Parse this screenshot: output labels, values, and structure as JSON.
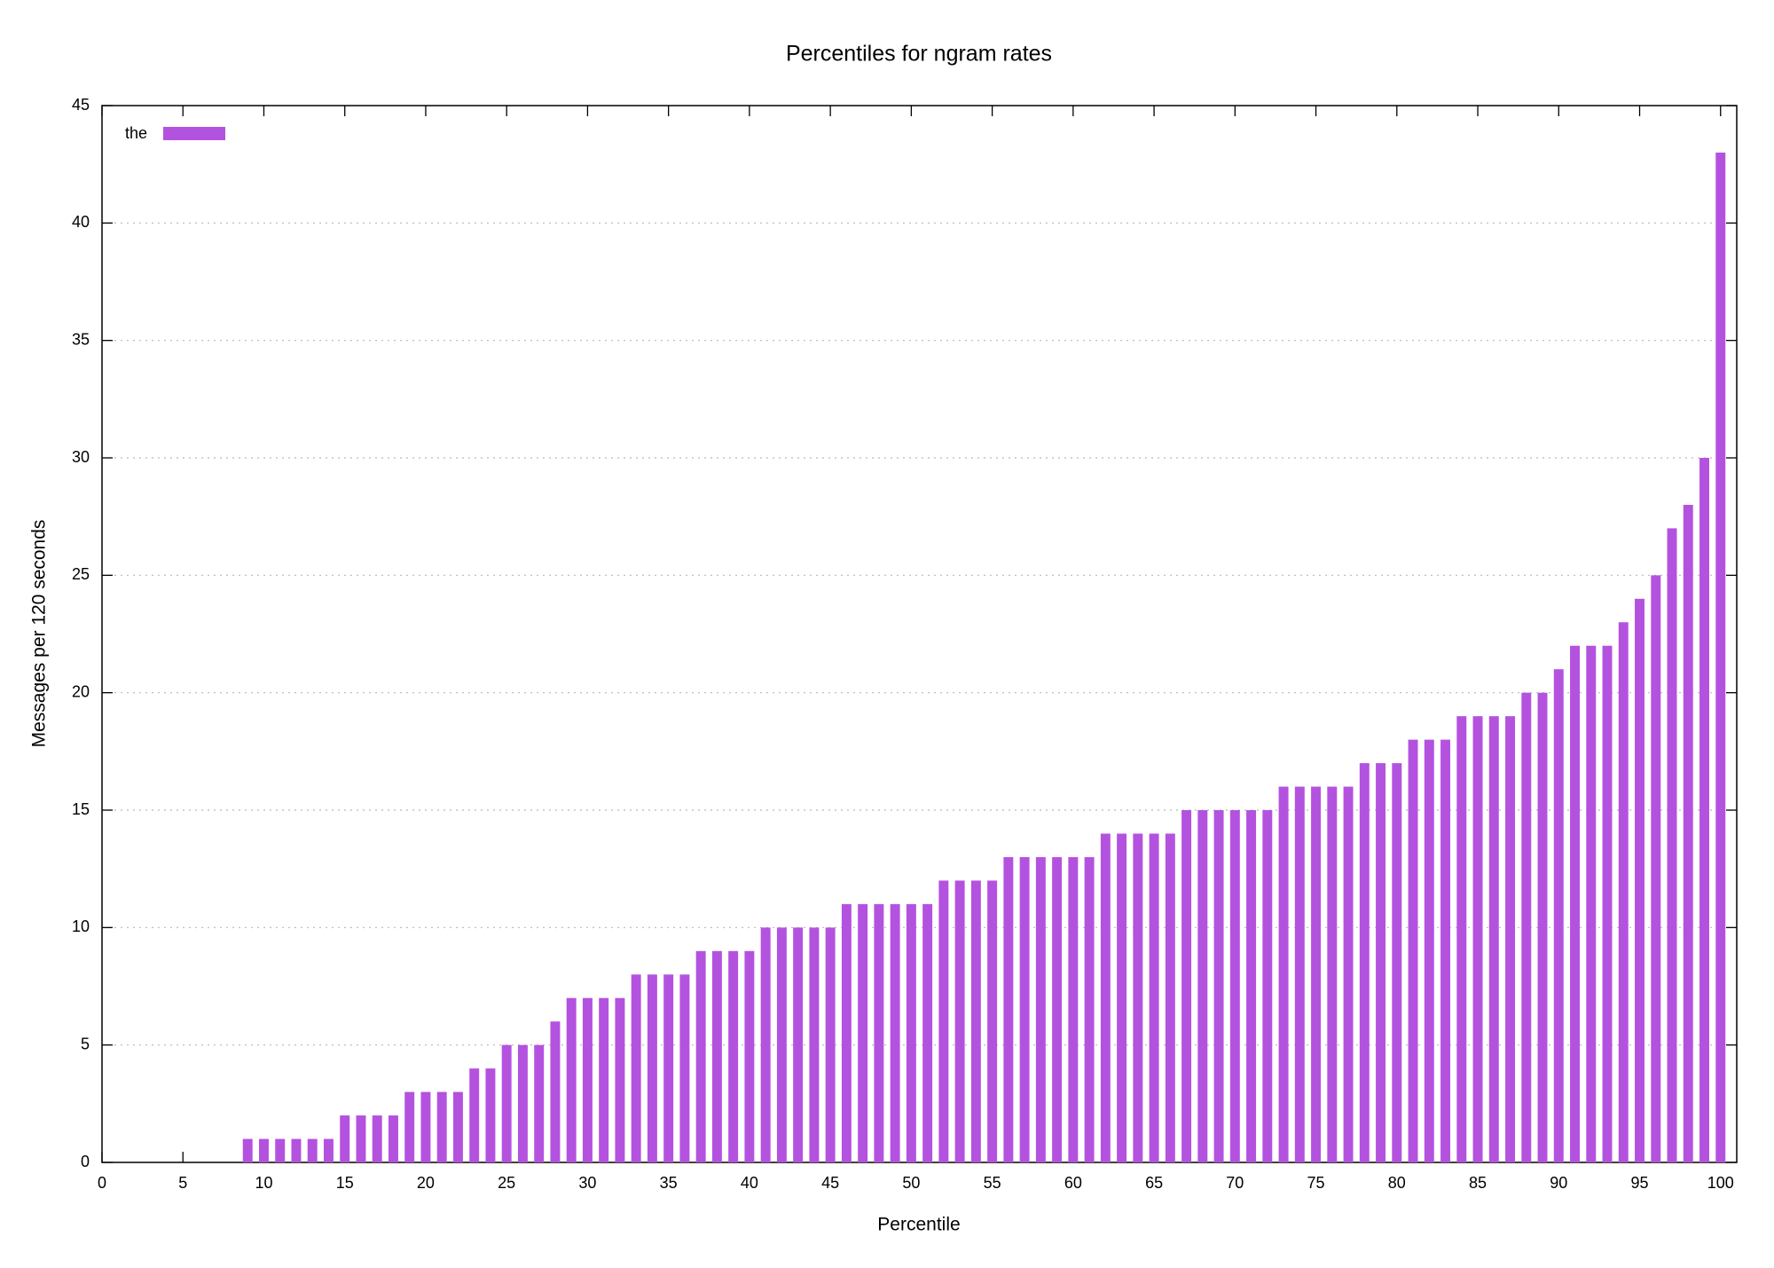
{
  "chart_data": {
    "type": "bar",
    "title": "Percentiles for ngram rates",
    "x_label": "Percentile",
    "y_label": "Messages per 120 seconds",
    "x": [
      9,
      10,
      11,
      12,
      13,
      14,
      15,
      16,
      17,
      18,
      19,
      20,
      21,
      22,
      23,
      24,
      25,
      26,
      27,
      28,
      29,
      30,
      31,
      32,
      33,
      34,
      35,
      36,
      37,
      38,
      39,
      40,
      41,
      42,
      43,
      44,
      45,
      46,
      47,
      48,
      49,
      50,
      51,
      52,
      53,
      54,
      55,
      56,
      57,
      58,
      59,
      60,
      61,
      62,
      63,
      64,
      65,
      66,
      67,
      68,
      69,
      70,
      71,
      72,
      73,
      74,
      75,
      76,
      77,
      78,
      79,
      80,
      81,
      82,
      83,
      84,
      85,
      86,
      87,
      88,
      89,
      90,
      91,
      92,
      93,
      94,
      95,
      96,
      97,
      98,
      99,
      100
    ],
    "series": [
      {
        "name": "the",
        "color": "#b452e0",
        "values": [
          1,
          1,
          1,
          1,
          1,
          1,
          2,
          2,
          2,
          2,
          3,
          3,
          3,
          3,
          4,
          4,
          5,
          5,
          5,
          6,
          7,
          7,
          7,
          7,
          8,
          8,
          8,
          8,
          9,
          9,
          9,
          9,
          10,
          10,
          10,
          10,
          10,
          11,
          11,
          11,
          11,
          11,
          11,
          12,
          12,
          12,
          12,
          13,
          13,
          13,
          13,
          13,
          13,
          14,
          14,
          14,
          14,
          14,
          15,
          15,
          15,
          15,
          15,
          15,
          16,
          16,
          16,
          16,
          16,
          17,
          17,
          17,
          18,
          18,
          18,
          19,
          19,
          19,
          19,
          20,
          20,
          21,
          22,
          22,
          22,
          23,
          24,
          25,
          27,
          28,
          30,
          43
        ]
      }
    ],
    "xlim": [
      0,
      101
    ],
    "ylim": [
      0,
      45
    ],
    "xticks": [
      0,
      5,
      10,
      15,
      20,
      25,
      30,
      35,
      40,
      45,
      50,
      55,
      60,
      65,
      70,
      75,
      80,
      85,
      90,
      95,
      100
    ],
    "yticks": [
      0,
      5,
      10,
      15,
      20,
      25,
      30,
      35,
      40,
      45
    ],
    "grid": true,
    "legend": "upper left"
  }
}
